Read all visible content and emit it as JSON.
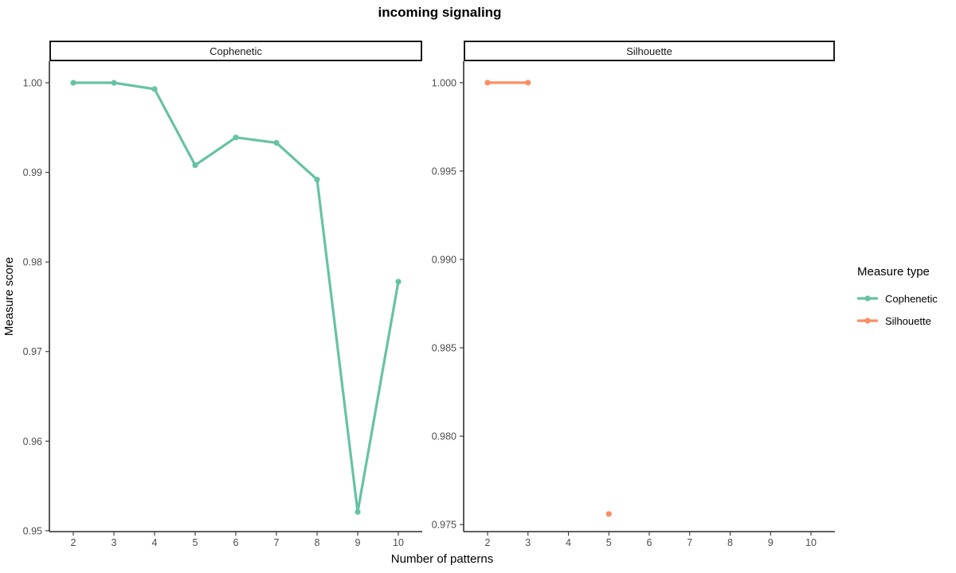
{
  "chart_data": {
    "type": "line",
    "title": "incoming signaling",
    "xlabel": "Number of patterns",
    "ylabel": "Measure score",
    "legend_title": "Measure type",
    "legend_position": "right",
    "grid": false,
    "xlim": [
      2,
      10
    ],
    "x_ticks": [
      2,
      3,
      4,
      5,
      6,
      7,
      8,
      9,
      10
    ],
    "facets": [
      {
        "label": "Cophenetic",
        "series_name": "Cophenetic",
        "color": "#66C2A5",
        "x": [
          2,
          3,
          4,
          5,
          6,
          7,
          8,
          9,
          10
        ],
        "y": [
          1.0,
          1.0,
          0.9993,
          0.9908,
          0.9939,
          0.9933,
          0.9892,
          0.9521,
          0.9778
        ],
        "ylim": [
          0.9499,
          1.0024
        ],
        "y_tick_values": [
          1.0,
          0.99,
          0.98,
          0.97,
          0.96,
          0.95
        ],
        "y_tick_labels": [
          "1.00",
          "0.99",
          "0.98",
          "0.97",
          "0.96",
          "0.95"
        ]
      },
      {
        "label": "Silhouette",
        "series_name": "Silhouette",
        "color": "#FC8D62",
        "x": [
          2,
          3,
          4,
          5
        ],
        "y": [
          1.0,
          1.0,
          null,
          0.9756
        ],
        "ylim": [
          0.9746,
          1.00121
        ],
        "y_tick_values": [
          1.0,
          0.995,
          0.99,
          0.985,
          0.98,
          0.975
        ],
        "y_tick_labels": [
          "1.000",
          "0.995",
          "0.990",
          "0.985",
          "0.980",
          "0.975"
        ]
      }
    ],
    "legend": [
      {
        "label": "Cophenetic",
        "color": "#66C2A5"
      },
      {
        "label": "Silhouette",
        "color": "#FC8D62"
      }
    ]
  }
}
